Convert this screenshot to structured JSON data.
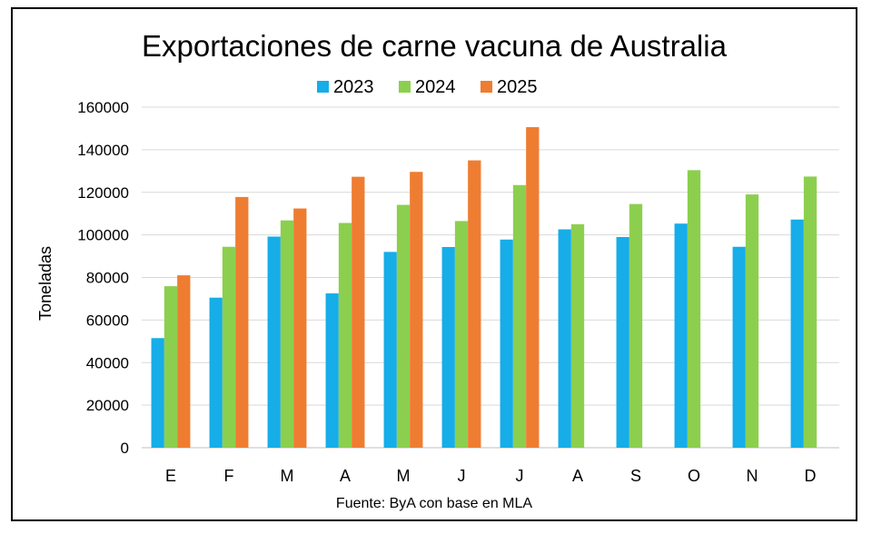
{
  "chart_data": {
    "type": "bar",
    "title": "Exportaciones de carne vacuna de Australia",
    "ylabel": "Toneladas",
    "xlabel": "",
    "source": "Fuente: ByA con base en MLA",
    "categories": [
      "E",
      "F",
      "M",
      "A",
      "M",
      "J",
      "J",
      "A",
      "S",
      "O",
      "N",
      "D"
    ],
    "yticks": [
      "0",
      "20000",
      "40000",
      "60000",
      "80000",
      "100000",
      "120000",
      "140000",
      "160000"
    ],
    "ylim": [
      0,
      160000
    ],
    "grid": true,
    "legend_position": "top-center",
    "series": [
      {
        "name": "2023",
        "color": "#16ADE8",
        "values": [
          51500,
          70500,
          99200,
          72500,
          92000,
          94300,
          97800,
          102600,
          99000,
          105300,
          94400,
          107200
        ]
      },
      {
        "name": "2024",
        "color": "#8CCF4E",
        "values": [
          75900,
          94400,
          106800,
          105600,
          114100,
          106500,
          123400,
          105000,
          114500,
          130400,
          119000,
          127400
        ]
      },
      {
        "name": "2025",
        "color": "#EE7D31",
        "values": [
          81000,
          117800,
          112400,
          127300,
          129600,
          135000,
          150600,
          null,
          null,
          null,
          null,
          null
        ]
      }
    ]
  }
}
